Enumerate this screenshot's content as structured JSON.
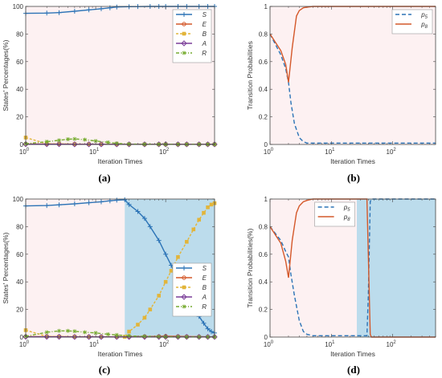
{
  "chart_data": [
    {
      "id": "a",
      "panel_label": "(a)",
      "type": "line",
      "xscale": "log",
      "xlim": [
        1,
        500
      ],
      "ylim": [
        0,
        100
      ],
      "xlabel": "Iteration Times",
      "ylabel": "States' Percentages(%)",
      "xticks": [
        {
          "v": 1,
          "b": "10",
          "e": "0"
        },
        {
          "v": 10,
          "b": "10",
          "e": "1"
        },
        {
          "v": 100,
          "b": "10",
          "e": "2"
        }
      ],
      "yticks": [
        "0",
        "20",
        "40",
        "60",
        "80",
        "100"
      ],
      "yticks_v": [
        0,
        20,
        40,
        60,
        80,
        100
      ],
      "background": [
        {
          "x0": 1,
          "x1": 500,
          "color": "#fdf1f2"
        }
      ],
      "legend": {
        "position": "top-right"
      },
      "series": [
        {
          "name": "S",
          "color": "#2b73b6",
          "dash": "",
          "marker": "plus",
          "x": [
            1,
            2,
            3,
            5,
            8,
            12,
            16,
            20,
            30,
            40,
            60,
            80,
            100,
            150,
            200,
            300,
            400,
            500
          ],
          "y": [
            95,
            95.2,
            95.5,
            96.5,
            97.5,
            98.3,
            99,
            99.6,
            99.8,
            99.9,
            100,
            100,
            100,
            100,
            100,
            100,
            100,
            100
          ]
        },
        {
          "name": "E",
          "color": "#d4582a",
          "dash": "",
          "marker": "circle",
          "x": [
            1,
            2,
            3,
            5,
            8,
            12,
            20,
            30,
            50,
            80,
            100,
            150,
            200,
            300,
            400,
            500
          ],
          "y": [
            0.3,
            0.3,
            0.3,
            0.2,
            0.2,
            0.2,
            0.1,
            0.1,
            0.1,
            0.1,
            0.1,
            0.1,
            0.1,
            0.1,
            0.1,
            0.1
          ]
        },
        {
          "name": "B",
          "color": "#e2b53a",
          "dash": "3,2",
          "marker": "square",
          "x": [
            1,
            2,
            3,
            5,
            8,
            12,
            20,
            30,
            50,
            80,
            100,
            150,
            200,
            300,
            400,
            500
          ],
          "y": [
            5,
            0.5,
            0.4,
            0.3,
            0.2,
            0.2,
            0.1,
            0.1,
            0.1,
            0.1,
            0.1,
            0.1,
            0.1,
            0.1,
            0.1,
            0.1
          ]
        },
        {
          "name": "A",
          "color": "#7b3f99",
          "dash": "",
          "marker": "diamond",
          "x": [
            1,
            2,
            3,
            5,
            8,
            12,
            20,
            30,
            50,
            80,
            100,
            150,
            200,
            300,
            400,
            500
          ],
          "y": [
            0.2,
            0.2,
            0.2,
            0.1,
            0.1,
            0.1,
            0.1,
            0.1,
            0.1,
            0.1,
            0.1,
            0.1,
            0.1,
            0.1,
            0.1,
            0.1
          ]
        },
        {
          "name": "R",
          "color": "#77ac30",
          "dash": "4,2,1,2",
          "marker": "star",
          "x": [
            1,
            2,
            3,
            4,
            5,
            7,
            10,
            15,
            20,
            30,
            50,
            80,
            100,
            150,
            200,
            300,
            400,
            500
          ],
          "y": [
            0.5,
            2,
            3,
            3.8,
            4,
            3.5,
            2.5,
            1.5,
            0.8,
            0.3,
            0.2,
            0.1,
            0.1,
            0.1,
            0.1,
            0.1,
            0.1,
            0.1
          ]
        }
      ]
    },
    {
      "id": "b",
      "panel_label": "(b)",
      "type": "line",
      "xscale": "log",
      "xlim": [
        1,
        500
      ],
      "ylim": [
        0,
        1
      ],
      "xlabel": "Iteration Times",
      "ylabel": "Transition Probabilities",
      "xticks": [
        {
          "v": 1,
          "b": "10",
          "e": "0"
        },
        {
          "v": 10,
          "b": "10",
          "e": "1"
        },
        {
          "v": 100,
          "b": "10",
          "e": "2"
        }
      ],
      "yticks": [
        "0",
        "0.2",
        "0.4",
        "0.6",
        "0.8",
        "1"
      ],
      "yticks_v": [
        0,
        0.2,
        0.4,
        0.6,
        0.8,
        1
      ],
      "background": [
        {
          "x0": 1,
          "x1": 500,
          "color": "#fdf1f2"
        }
      ],
      "legend": {
        "position": "top-right"
      },
      "series": [
        {
          "name": "p",
          "sub": "5",
          "color": "#2b73b6",
          "dash": "5,3",
          "marker": "",
          "x": [
            1,
            1.5,
            1.8,
            2,
            2.2,
            2.5,
            3,
            3.5,
            4,
            5,
            7,
            10,
            20,
            50,
            100,
            500
          ],
          "y": [
            0.8,
            0.65,
            0.55,
            0.45,
            0.3,
            0.15,
            0.05,
            0.02,
            0.01,
            0.01,
            0.01,
            0.01,
            0.01,
            0.01,
            0.01,
            0.01
          ]
        },
        {
          "name": "p",
          "sub": "8",
          "color": "#d4582a",
          "dash": "",
          "marker": "",
          "x": [
            1,
            1.5,
            1.8,
            2,
            2.3,
            2.7,
            3,
            3.5,
            4,
            5,
            7,
            10,
            20,
            50,
            100,
            500
          ],
          "y": [
            0.8,
            0.68,
            0.58,
            0.45,
            0.7,
            0.93,
            0.97,
            0.99,
            0.995,
            1,
            1,
            1,
            1,
            1,
            1,
            1
          ]
        }
      ]
    },
    {
      "id": "c",
      "panel_label": "(c)",
      "type": "line",
      "xscale": "log",
      "xlim": [
        1,
        500
      ],
      "ylim": [
        0,
        100
      ],
      "xlabel": "Iteration Times",
      "ylabel": "States' Percentages(%)",
      "xticks": [
        {
          "v": 1,
          "b": "10",
          "e": "0"
        },
        {
          "v": 10,
          "b": "10",
          "e": "1"
        },
        {
          "v": 100,
          "b": "10",
          "e": "2"
        }
      ],
      "yticks": [
        "0",
        "20",
        "40",
        "60",
        "80",
        "100"
      ],
      "yticks_v": [
        0,
        20,
        40,
        60,
        80,
        100
      ],
      "background": [
        {
          "x0": 1,
          "x1": 26,
          "color": "#fdf1f2"
        },
        {
          "x0": 26,
          "x1": 500,
          "color": "#bcdcec"
        }
      ],
      "legend": {
        "position": "bottom-right"
      },
      "series": [
        {
          "name": "S",
          "color": "#2b73b6",
          "dash": "",
          "marker": "plus",
          "x": [
            1,
            2,
            3,
            5,
            8,
            12,
            16,
            20,
            26,
            30,
            40,
            50,
            60,
            80,
            100,
            120,
            150,
            200,
            250,
            300,
            350,
            400,
            450,
            500
          ],
          "y": [
            95,
            95.3,
            95.8,
            96.5,
            97.3,
            98,
            98.7,
            99.2,
            99.5,
            96,
            91,
            86,
            80,
            70,
            60,
            52,
            42,
            31,
            22,
            15,
            10,
            6,
            4,
            3
          ]
        },
        {
          "name": "E",
          "color": "#d4582a",
          "dash": "",
          "marker": "circle",
          "x": [
            1,
            2,
            3,
            5,
            8,
            12,
            20,
            30,
            50,
            80,
            100,
            150,
            200,
            300,
            400,
            500
          ],
          "y": [
            0.3,
            0.3,
            0.3,
            0.2,
            0.2,
            0.2,
            0.2,
            0.3,
            0.4,
            0.5,
            0.6,
            0.5,
            0.4,
            0.3,
            0.2,
            0.2
          ]
        },
        {
          "name": "B",
          "color": "#e2b53a",
          "dash": "3,2",
          "marker": "square",
          "x": [
            1,
            2,
            3,
            5,
            8,
            12,
            20,
            26,
            30,
            40,
            50,
            60,
            80,
            100,
            120,
            150,
            200,
            250,
            300,
            350,
            400,
            450,
            500
          ],
          "y": [
            5,
            0.5,
            0.4,
            0.3,
            0.2,
            0.2,
            0.1,
            0.2,
            4,
            9,
            14,
            20,
            30,
            40,
            48,
            58,
            69,
            78,
            85,
            90,
            94,
            96,
            97
          ]
        },
        {
          "name": "A",
          "color": "#7b3f99",
          "dash": "",
          "marker": "diamond",
          "x": [
            1,
            2,
            3,
            5,
            8,
            12,
            20,
            30,
            50,
            80,
            100,
            150,
            200,
            300,
            400,
            500
          ],
          "y": [
            0.2,
            0.2,
            0.2,
            0.1,
            0.1,
            0.1,
            0.1,
            0.1,
            0.1,
            0.1,
            0.1,
            0.1,
            0.1,
            0.1,
            0.1,
            0.1
          ]
        },
        {
          "name": "R",
          "color": "#77ac30",
          "dash": "4,2,1,2",
          "marker": "star",
          "x": [
            1,
            2,
            3,
            4,
            5,
            7,
            10,
            15,
            20,
            30,
            50,
            80,
            100,
            150,
            200,
            300,
            400,
            500
          ],
          "y": [
            0.5,
            3.5,
            4.5,
            4.5,
            4.2,
            3.5,
            3,
            2,
            1.5,
            0.8,
            0.5,
            0.3,
            0.2,
            0.2,
            0.1,
            0.1,
            0.1,
            0.1
          ]
        }
      ]
    },
    {
      "id": "d",
      "panel_label": "(d)",
      "type": "line",
      "xscale": "log",
      "xlim": [
        1,
        500
      ],
      "ylim": [
        0,
        1
      ],
      "xlabel": "Iteration Times",
      "ylabel": "Transition Probabilities(%)",
      "xticks": [
        {
          "v": 1,
          "b": "10",
          "e": "0"
        },
        {
          "v": 10,
          "b": "10",
          "e": "1"
        },
        {
          "v": 100,
          "b": "10",
          "e": "2"
        }
      ],
      "yticks": [
        "0",
        "0.2",
        "0.4",
        "0.6",
        "0.8",
        "1"
      ],
      "yticks_v": [
        0,
        0.2,
        0.4,
        0.6,
        0.8,
        1
      ],
      "background": [
        {
          "x0": 1,
          "x1": 26,
          "color": "#fdf1f2"
        },
        {
          "x0": 26,
          "x1": 500,
          "color": "#bcdcec"
        }
      ],
      "legend": {
        "position": "top-left"
      },
      "series": [
        {
          "name": "p",
          "sub": "5",
          "color": "#2b73b6",
          "dash": "5,3",
          "marker": "",
          "x": [
            1,
            1.5,
            1.8,
            2,
            2.2,
            2.5,
            3,
            3.5,
            4,
            5,
            7,
            10,
            20,
            30,
            38,
            40,
            43,
            45,
            50,
            100,
            500
          ],
          "y": [
            0.8,
            0.7,
            0.62,
            0.58,
            0.45,
            0.3,
            0.12,
            0.04,
            0.02,
            0.01,
            0.01,
            0.01,
            0.01,
            0.01,
            0.01,
            0.3,
            0.98,
            1,
            1,
            1,
            1
          ]
        },
        {
          "name": "p",
          "sub": "8",
          "color": "#d4582a",
          "dash": "",
          "marker": "",
          "x": [
            1,
            1.5,
            1.8,
            2,
            2.3,
            2.7,
            3,
            3.5,
            4,
            5,
            7,
            10,
            20,
            30,
            38,
            40,
            43,
            45,
            50,
            100,
            500
          ],
          "y": [
            0.8,
            0.68,
            0.55,
            0.43,
            0.7,
            0.9,
            0.95,
            0.98,
            0.99,
            1,
            1,
            1,
            1,
            1,
            1,
            0.6,
            0.02,
            0,
            0,
            0,
            0
          ]
        }
      ]
    }
  ]
}
